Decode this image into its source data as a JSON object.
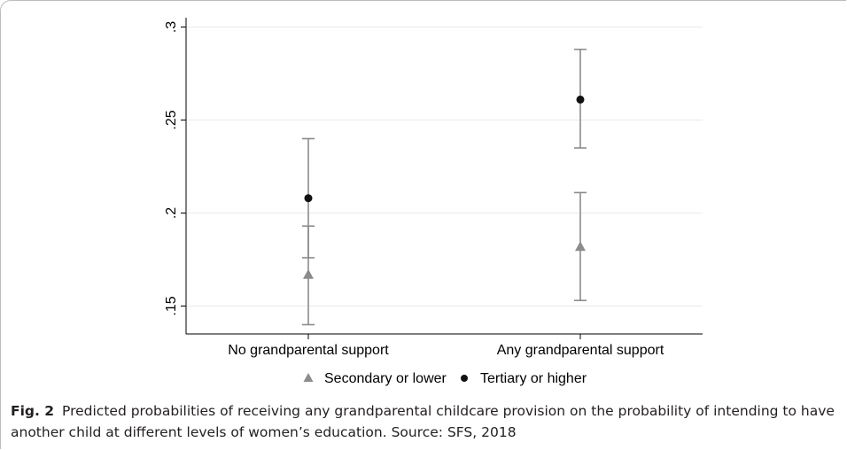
{
  "chart_data": {
    "type": "scatter",
    "categories": [
      "No grandparental support",
      "Any grandparental support"
    ],
    "y_ticks": [
      ".15",
      ".2",
      ".25",
      ".3"
    ],
    "ylim": [
      0.135,
      0.305
    ],
    "grid": true,
    "legend_position": "bottom",
    "colors": {
      "secondary": "#8c8c8c",
      "tertiary": "#111111",
      "ci": "#8c8c8c",
      "grid": "#eaeaea",
      "axis": "#000000"
    },
    "series": [
      {
        "name": "Secondary or lower",
        "marker": "triangle",
        "values": [
          0.167,
          0.182
        ],
        "ci_low": [
          0.14,
          0.153
        ],
        "ci_high": [
          0.193,
          0.211
        ]
      },
      {
        "name": "Tertiary or higher",
        "marker": "circle",
        "values": [
          0.208,
          0.261
        ],
        "ci_low": [
          0.176,
          0.235
        ],
        "ci_high": [
          0.24,
          0.288
        ]
      }
    ]
  },
  "caption": {
    "label": "Fig. 2",
    "text": "Predicted probabilities of receiving any grandparental childcare provision on the probability of intending to have another child at different levels of women’s education.  Source: SFS, 2018"
  }
}
